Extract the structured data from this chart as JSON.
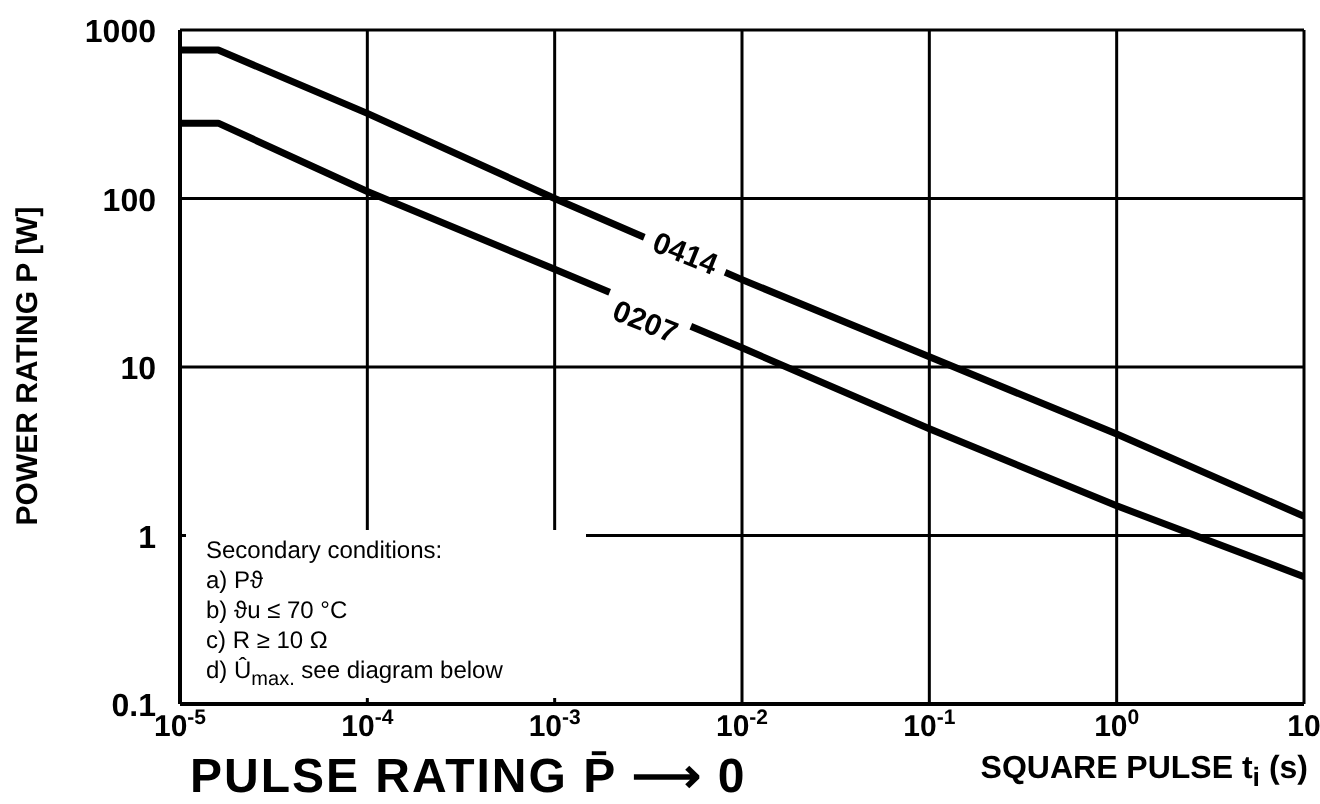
{
  "chart_data": {
    "type": "line",
    "title": "PULSE RATING P̄ ⟶ 0",
    "xlabel": "SQUARE PULSE t$_{i}$ (s)",
    "ylabel": "POWER RATING P [W]",
    "annotations": [
      "Secondary conditions:",
      "a) Pϑ",
      "b) ϑu ≤ 70 °C",
      "c) R ≥ 10 Ω",
      "d) Û$_{max.}$ see diagram below"
    ],
    "x": [
      1e-05,
      1.6e-05,
      0.0001,
      0.001,
      0.01,
      0.1,
      1,
      10
    ],
    "series": [
      {
        "name": "0414",
        "color": "#000000",
        "values": [
          760,
          760,
          320,
          100,
          33,
          11.5,
          4,
          1.3
        ]
      },
      {
        "name": "0207",
        "color": "#000000",
        "values": [
          280,
          280,
          110,
          38,
          13,
          4.3,
          1.5,
          0.57
        ]
      }
    ],
    "log": "xy",
    "xlim": [
      1e-05,
      10
    ],
    "ylim": [
      0.1,
      1000
    ],
    "xticks": [
      {
        "value": 1e-05,
        "label": "10$^{-5}$"
      },
      {
        "value": 0.0001,
        "label": "10$^{-4}$"
      },
      {
        "value": 0.001,
        "label": "10$^{-3}$"
      },
      {
        "value": 0.01,
        "label": "10$^{-2}$"
      },
      {
        "value": 0.1,
        "label": "10$^{-1}$"
      },
      {
        "value": 1,
        "label": "10$^{0}$"
      },
      10
    ],
    "yticks": [
      0.1,
      1,
      10,
      100,
      1000
    ],
    "grid": true,
    "legend": false,
    "marker": "none",
    "line_style": "solid"
  }
}
